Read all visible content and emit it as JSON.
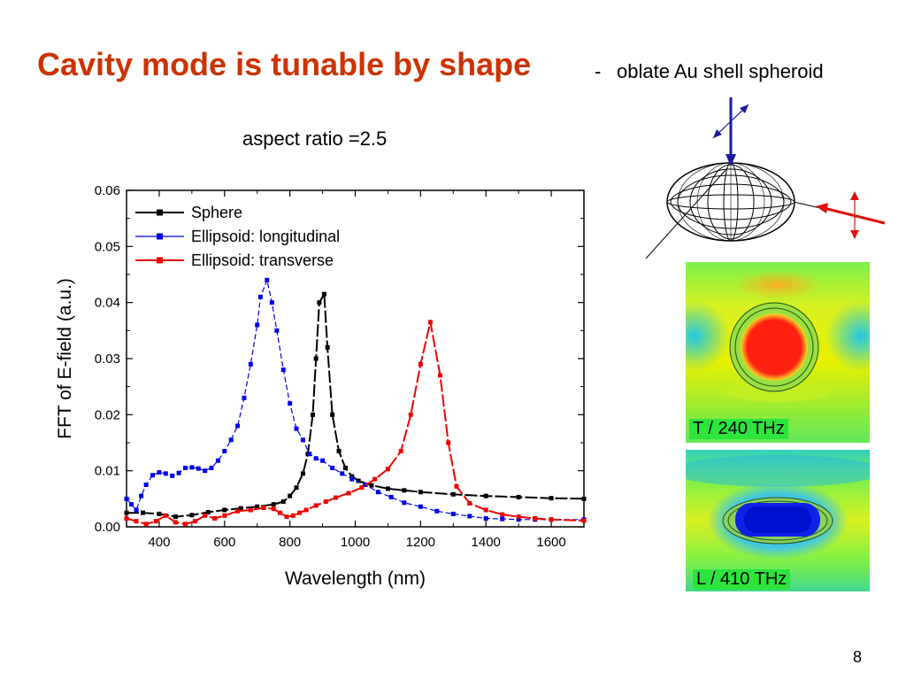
{
  "slide": {
    "title": "Cavity mode is tunable by shape",
    "title_separator": "-",
    "subtitle": "oblate Au shell spheroid",
    "aspect_ratio_label": "aspect ratio =2.5",
    "page_number": "8",
    "colors": {
      "title": "#cc3300"
    }
  },
  "insets": {
    "panel_t_label": "T / 240 THz",
    "panel_l_label": "L / 410 THz"
  },
  "chart_data": {
    "type": "line",
    "title": "",
    "xlabel": "Wavelength (nm)",
    "ylabel": "FFT of E-field (a.u.)",
    "xlim": [
      300,
      1700
    ],
    "ylim": [
      0,
      0.06
    ],
    "xticks": [
      400,
      600,
      800,
      1000,
      1200,
      1400,
      1600
    ],
    "yticks": [
      "0.00",
      "0.01",
      "0.02",
      "0.03",
      "0.04",
      "0.05",
      "0.06"
    ],
    "grid": false,
    "legend_position": "top-left",
    "series": [
      {
        "name": "Sphere",
        "color": "#000000",
        "points": [
          [
            300,
            0.0025
          ],
          [
            350,
            0.0025
          ],
          [
            400,
            0.0023
          ],
          [
            450,
            0.0018
          ],
          [
            500,
            0.0021
          ],
          [
            550,
            0.0026
          ],
          [
            600,
            0.003
          ],
          [
            650,
            0.0033
          ],
          [
            700,
            0.0036
          ],
          [
            750,
            0.004
          ],
          [
            780,
            0.0045
          ],
          [
            800,
            0.0055
          ],
          [
            820,
            0.007
          ],
          [
            840,
            0.0095
          ],
          [
            855,
            0.013
          ],
          [
            870,
            0.02
          ],
          [
            880,
            0.03
          ],
          [
            890,
            0.04
          ],
          [
            905,
            0.0415
          ],
          [
            915,
            0.032
          ],
          [
            930,
            0.02
          ],
          [
            950,
            0.0135
          ],
          [
            970,
            0.0105
          ],
          [
            990,
            0.009
          ],
          [
            1010,
            0.0082
          ],
          [
            1050,
            0.0074
          ],
          [
            1100,
            0.0068
          ],
          [
            1150,
            0.0065
          ],
          [
            1200,
            0.0062
          ],
          [
            1300,
            0.0058
          ],
          [
            1400,
            0.0055
          ],
          [
            1500,
            0.0053
          ],
          [
            1600,
            0.0051
          ],
          [
            1700,
            0.005
          ]
        ]
      },
      {
        "name": "Ellipsoid: longitudinal",
        "color": "#0000ee",
        "points": [
          [
            300,
            0.005
          ],
          [
            315,
            0.004
          ],
          [
            330,
            0.003
          ],
          [
            345,
            0.0055
          ],
          [
            360,
            0.0075
          ],
          [
            380,
            0.0092
          ],
          [
            400,
            0.0097
          ],
          [
            420,
            0.0095
          ],
          [
            440,
            0.0091
          ],
          [
            460,
            0.0096
          ],
          [
            480,
            0.0105
          ],
          [
            500,
            0.0106
          ],
          [
            520,
            0.0104
          ],
          [
            540,
            0.01
          ],
          [
            560,
            0.0105
          ],
          [
            580,
            0.0118
          ],
          [
            600,
            0.0135
          ],
          [
            620,
            0.0155
          ],
          [
            640,
            0.018
          ],
          [
            660,
            0.023
          ],
          [
            680,
            0.029
          ],
          [
            700,
            0.036
          ],
          [
            710,
            0.041
          ],
          [
            730,
            0.044
          ],
          [
            745,
            0.04
          ],
          [
            760,
            0.035
          ],
          [
            780,
            0.028
          ],
          [
            800,
            0.022
          ],
          [
            820,
            0.0175
          ],
          [
            840,
            0.0155
          ],
          [
            860,
            0.013
          ],
          [
            880,
            0.0122
          ],
          [
            900,
            0.0118
          ],
          [
            930,
            0.0105
          ],
          [
            960,
            0.0095
          ],
          [
            990,
            0.0085
          ],
          [
            1030,
            0.0075
          ],
          [
            1070,
            0.0062
          ],
          [
            1110,
            0.0053
          ],
          [
            1150,
            0.0043
          ],
          [
            1200,
            0.0036
          ],
          [
            1250,
            0.0028
          ],
          [
            1300,
            0.0023
          ],
          [
            1350,
            0.0019
          ],
          [
            1400,
            0.0015
          ],
          [
            1450,
            0.0014
          ],
          [
            1500,
            0.0013
          ],
          [
            1550,
            0.0013
          ],
          [
            1600,
            0.0013
          ],
          [
            1700,
            0.0013
          ]
        ]
      },
      {
        "name": "Ellipsoid: transverse",
        "color": "#ee0000",
        "points": [
          [
            300,
            0.0015
          ],
          [
            330,
            0.001
          ],
          [
            360,
            0.0005
          ],
          [
            390,
            0.001
          ],
          [
            420,
            0.002
          ],
          [
            450,
            0.0008
          ],
          [
            480,
            0.0005
          ],
          [
            510,
            0.001
          ],
          [
            540,
            0.002
          ],
          [
            570,
            0.0015
          ],
          [
            600,
            0.002
          ],
          [
            640,
            0.0028
          ],
          [
            680,
            0.003
          ],
          [
            720,
            0.0034
          ],
          [
            750,
            0.0032
          ],
          [
            770,
            0.0025
          ],
          [
            790,
            0.0018
          ],
          [
            810,
            0.002
          ],
          [
            830,
            0.0025
          ],
          [
            850,
            0.003
          ],
          [
            880,
            0.0038
          ],
          [
            910,
            0.0045
          ],
          [
            940,
            0.0052
          ],
          [
            980,
            0.006
          ],
          [
            1020,
            0.007
          ],
          [
            1060,
            0.0085
          ],
          [
            1100,
            0.0103
          ],
          [
            1140,
            0.0135
          ],
          [
            1170,
            0.02
          ],
          [
            1200,
            0.029
          ],
          [
            1230,
            0.0365
          ],
          [
            1260,
            0.027
          ],
          [
            1285,
            0.015
          ],
          [
            1310,
            0.0072
          ],
          [
            1350,
            0.0042
          ],
          [
            1400,
            0.003
          ],
          [
            1450,
            0.0022
          ],
          [
            1500,
            0.0018
          ],
          [
            1550,
            0.0015
          ],
          [
            1600,
            0.0013
          ],
          [
            1700,
            0.0011
          ]
        ]
      }
    ]
  }
}
